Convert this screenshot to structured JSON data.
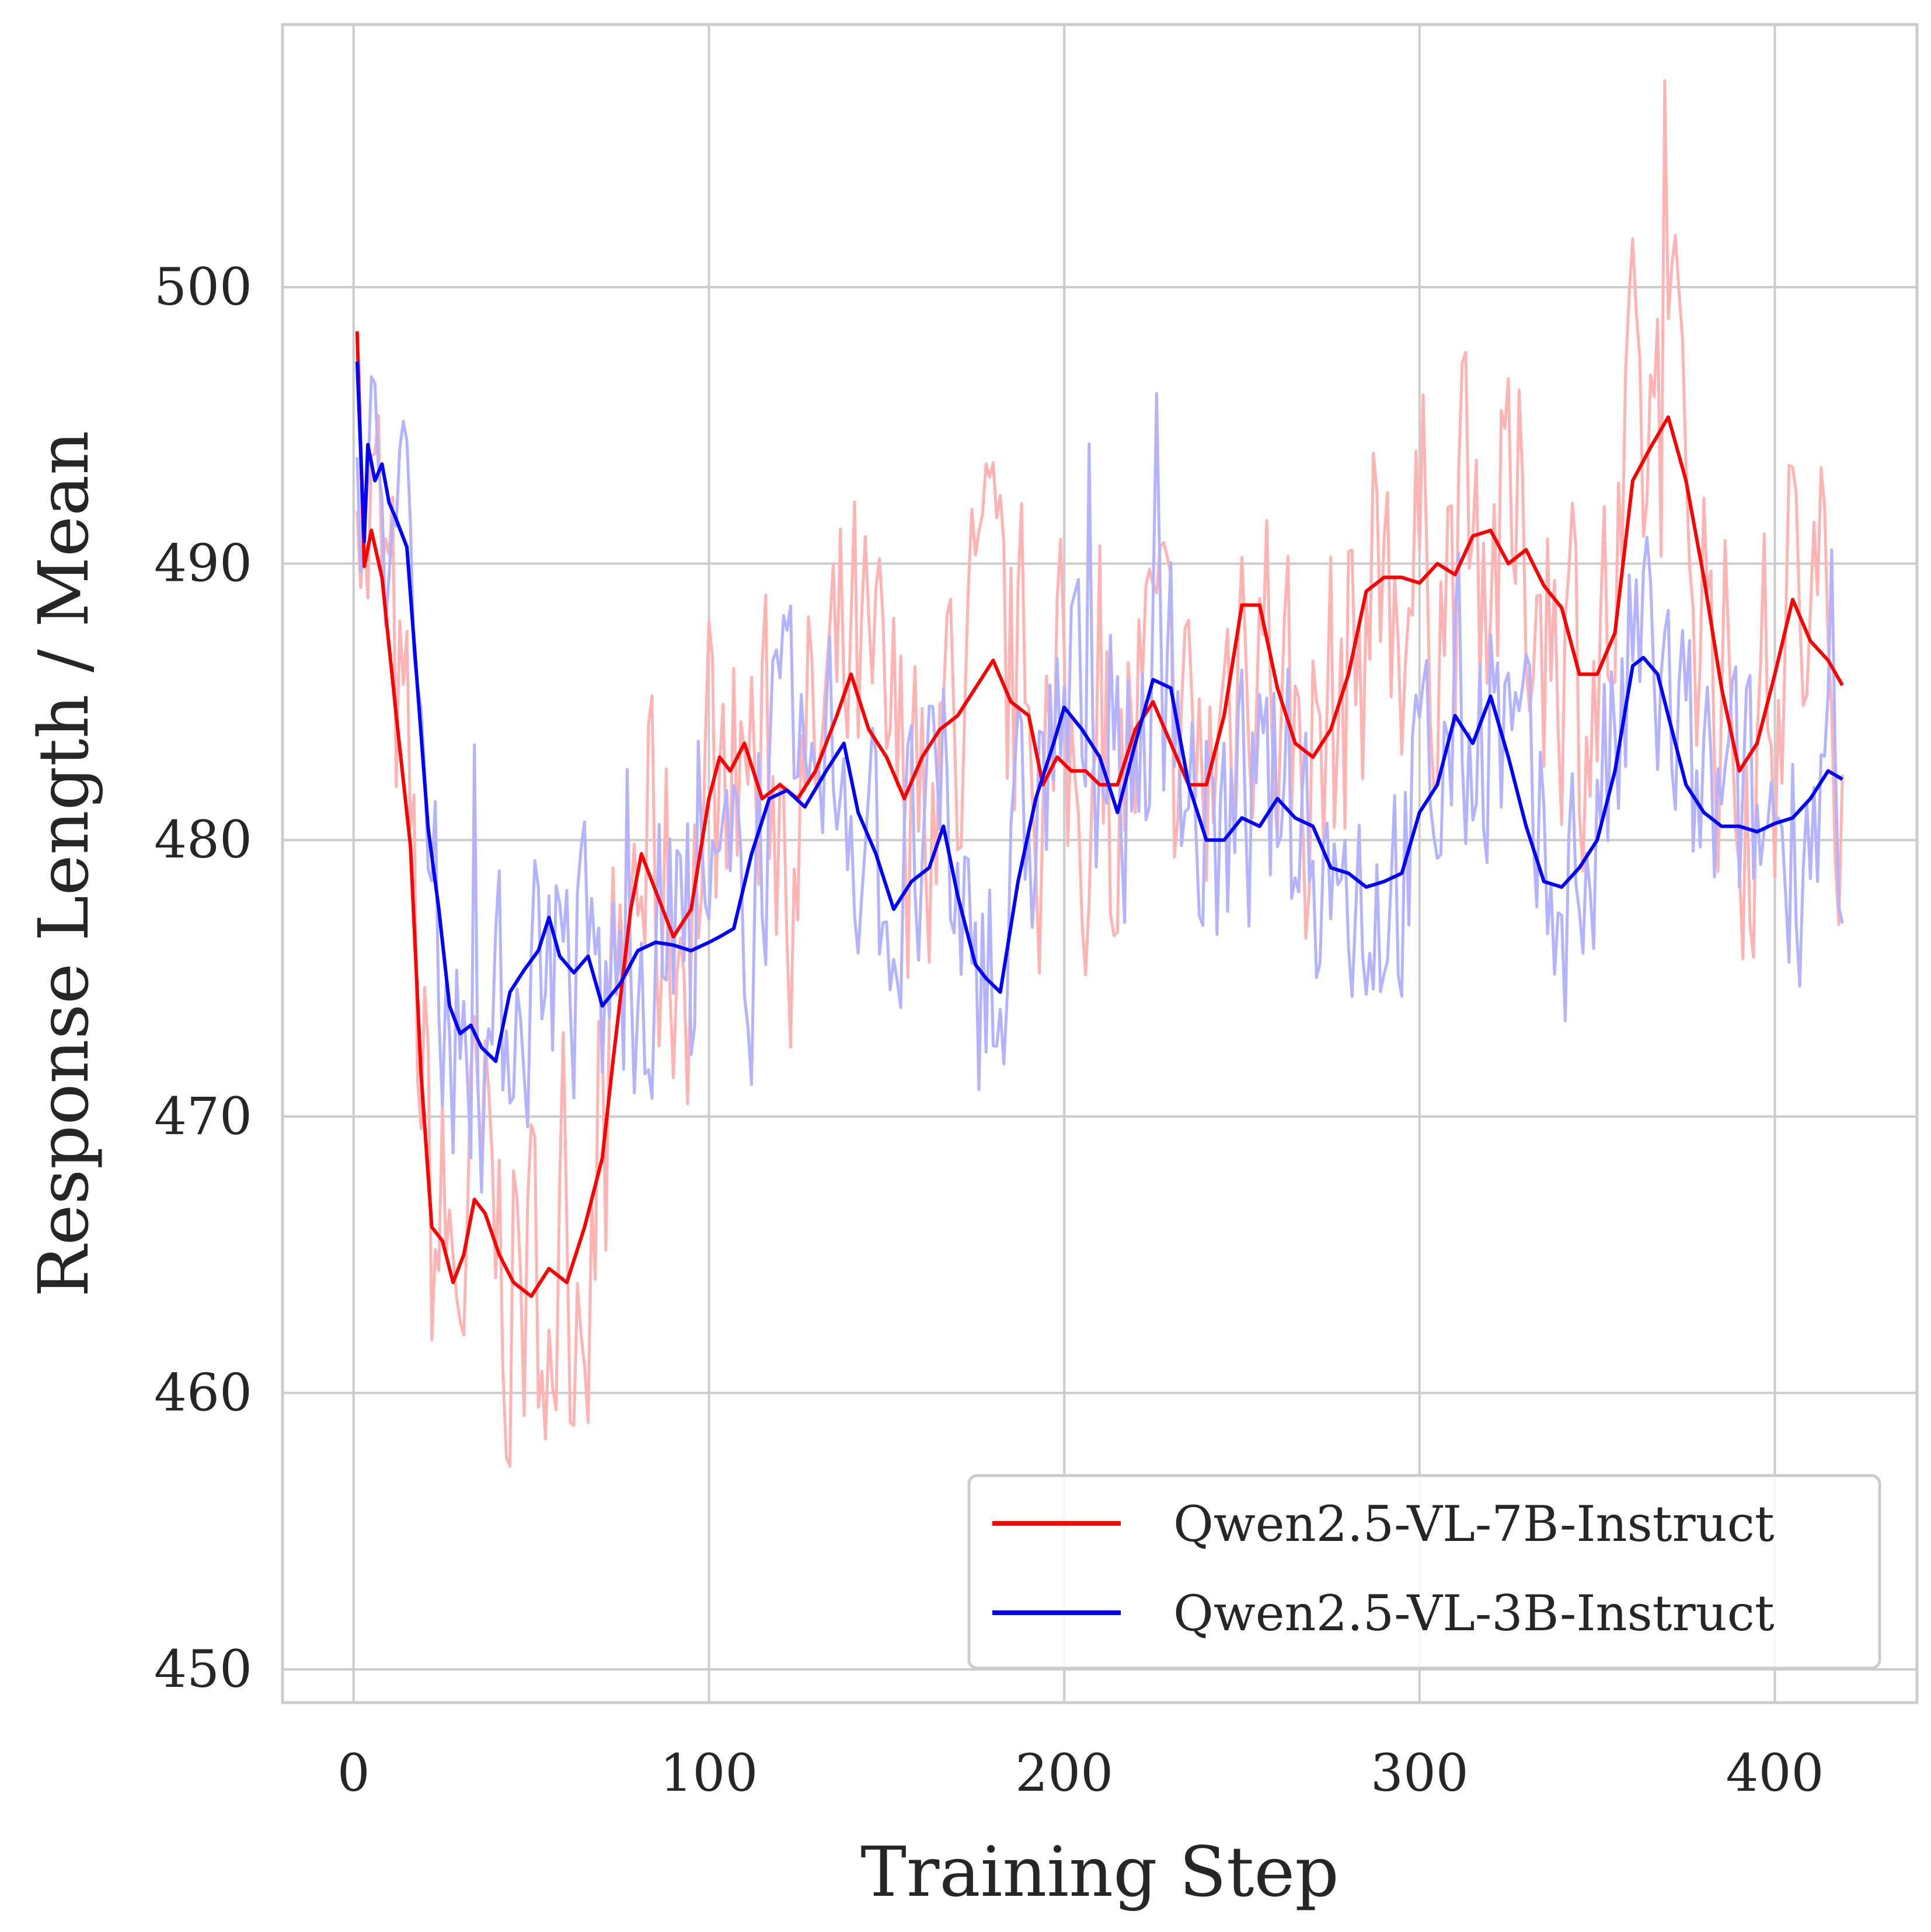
{
  "chart_data": {
    "type": "line",
    "title": "",
    "xlabel": "Training Step",
    "ylabel": "Response Length / Mean",
    "xlim": [
      -20,
      440
    ],
    "ylim": [
      448.8,
      509.5
    ],
    "xticks": [
      0,
      100,
      200,
      300,
      400
    ],
    "yticks": [
      450,
      460,
      470,
      480,
      490,
      500
    ],
    "grid": true,
    "legend_position": "lower-right",
    "colors": {
      "red": "#ff0000",
      "blue": "#0000ff",
      "red_raw": "#ffb3b3",
      "blue_raw": "#b3b3ff",
      "grid": "#cccccc",
      "text": "#262626"
    },
    "series": [
      {
        "name": "Qwen2.5-VL-7B-Instruct",
        "color": "#ff0000",
        "x": [
          1,
          3,
          5,
          8,
          12,
          16,
          19,
          22,
          25,
          28,
          31,
          34,
          37,
          41,
          45,
          50,
          55,
          60,
          65,
          70,
          73,
          78,
          81,
          84,
          90,
          95,
          100,
          103,
          106,
          110,
          115,
          120,
          125,
          130,
          136,
          140,
          145,
          150,
          155,
          160,
          165,
          170,
          175,
          180,
          185,
          190,
          194,
          198,
          202,
          206,
          210,
          215,
          220,
          225,
          230,
          235,
          240,
          245,
          250,
          255,
          260,
          265,
          270,
          275,
          280,
          285,
          290,
          295,
          300,
          305,
          310,
          315,
          320,
          325,
          330,
          335,
          340,
          345,
          350,
          355,
          360,
          365,
          370,
          375,
          380,
          385,
          390,
          395,
          400,
          405,
          410,
          415,
          419
        ],
        "y": [
          498.4,
          489.9,
          491.2,
          489.5,
          484.5,
          479.8,
          471.5,
          466.0,
          465.5,
          464.0,
          465.0,
          467.0,
          466.5,
          465.0,
          464.0,
          463.5,
          464.5,
          464.0,
          466.0,
          468.5,
          472.0,
          477.5,
          479.5,
          478.5,
          476.5,
          477.5,
          481.5,
          483.0,
          482.5,
          483.5,
          481.5,
          482.0,
          481.5,
          482.5,
          484.5,
          486.0,
          484.0,
          483.0,
          481.5,
          483.0,
          484.0,
          484.5,
          485.5,
          486.5,
          485.0,
          484.5,
          482.0,
          483.0,
          482.5,
          482.5,
          482.0,
          482.0,
          484.0,
          485.0,
          483.5,
          482.0,
          482.0,
          484.5,
          488.5,
          488.5,
          485.5,
          483.5,
          483.0,
          484.0,
          486.0,
          489.0,
          489.5,
          489.5,
          489.3,
          490.0,
          489.6,
          491.0,
          491.2,
          490.0,
          490.5,
          489.2,
          488.4,
          486.0,
          486.0,
          487.5,
          493.0,
          494.2,
          495.3,
          493.0,
          489.5,
          485.5,
          482.5,
          483.5,
          486.0,
          488.7,
          487.2,
          486.5,
          485.6
        ]
      },
      {
        "name": "Qwen2.5-VL-3B-Instruct",
        "color": "#0000ff",
        "x": [
          1,
          3,
          4,
          6,
          8,
          10,
          12,
          15,
          18,
          21,
          24,
          27,
          30,
          33,
          36,
          40,
          44,
          48,
          52,
          55,
          58,
          62,
          66,
          70,
          75,
          80,
          85,
          90,
          95,
          100,
          103,
          107,
          112,
          117,
          122,
          127,
          133,
          138,
          142,
          147,
          152,
          157,
          162,
          166,
          170,
          175,
          178,
          182,
          187,
          192,
          197,
          200,
          205,
          210,
          215,
          220,
          225,
          230,
          235,
          240,
          245,
          250,
          255,
          260,
          265,
          270,
          275,
          280,
          285,
          290,
          295,
          300,
          305,
          310,
          315,
          320,
          325,
          330,
          335,
          340,
          345,
          350,
          355,
          360,
          363,
          367,
          370,
          375,
          380,
          385,
          390,
          395,
          400,
          405,
          410,
          415,
          419
        ],
        "y": [
          497.3,
          490.8,
          494.3,
          493.0,
          493.6,
          492.2,
          491.6,
          490.6,
          485.5,
          480.4,
          477.5,
          474.0,
          473.0,
          473.3,
          472.5,
          472.0,
          474.5,
          475.3,
          476.0,
          477.2,
          475.8,
          475.2,
          475.8,
          474.0,
          474.8,
          476.0,
          476.3,
          476.2,
          476.0,
          476.3,
          476.5,
          476.8,
          479.5,
          481.5,
          481.8,
          481.2,
          482.5,
          483.5,
          481.0,
          479.5,
          477.5,
          478.5,
          479.0,
          480.5,
          478.0,
          475.5,
          475.0,
          474.5,
          478.5,
          481.5,
          483.5,
          484.8,
          484.0,
          483.0,
          481.0,
          483.5,
          485.8,
          485.5,
          482.0,
          480.0,
          480.0,
          480.8,
          480.5,
          481.5,
          480.8,
          480.5,
          479.0,
          478.8,
          478.3,
          478.5,
          478.8,
          481.0,
          482.0,
          484.5,
          483.5,
          485.2,
          483.0,
          480.5,
          478.5,
          478.3,
          479.0,
          480.0,
          482.5,
          486.3,
          486.6,
          486.0,
          484.5,
          482.0,
          481.0,
          480.5,
          480.5,
          480.3,
          480.6,
          480.8,
          481.5,
          482.5,
          482.2
        ]
      }
    ]
  }
}
